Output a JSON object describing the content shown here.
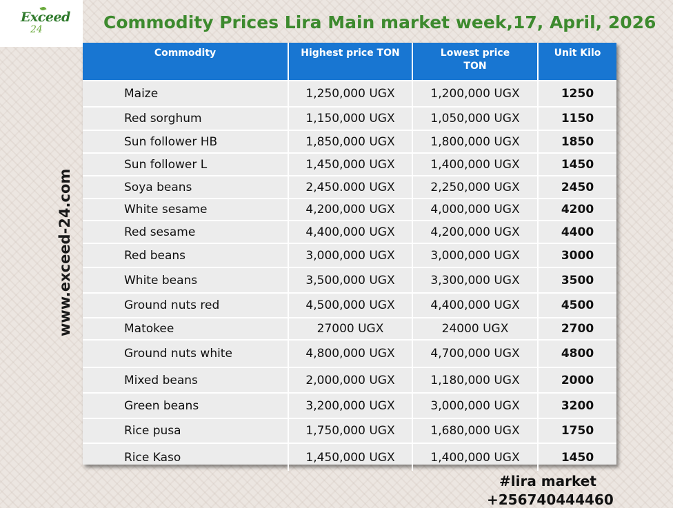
{
  "logo": {
    "brand": "Exceed",
    "sub": "24"
  },
  "title": "Commodity Prices Lira Main market week,17, April, 2026",
  "side_url": "www.exceed-24.com",
  "headers": [
    "Commodity",
    "Highest price TON",
    "Lowest price\nTON",
    "Unit Kilo"
  ],
  "rows": [
    {
      "name": "Maize",
      "high": "1,250,000 UGX",
      "low": "1,200,000 UGX",
      "unit": "1250"
    },
    {
      "name": "Red sorghum",
      "high": "1,150,000 UGX",
      "low": "1,050,000 UGX",
      "unit": "1150"
    },
    {
      "name": "Sun follower HB",
      "high": "1,850,000 UGX",
      "low": "1,800,000 UGX",
      "unit": "1850"
    },
    {
      "name": "Sun follower L",
      "high": "1,450,000 UGX",
      "low": "1,400,000 UGX",
      "unit": "1450"
    },
    {
      "name": "Soya beans",
      "high": "2,450.000 UGX",
      "low": "2,250,000 UGX",
      "unit": "2450"
    },
    {
      "name": "White sesame",
      "high": "4,200,000 UGX",
      "low": "4,000,000 UGX",
      "unit": "4200"
    },
    {
      "name": "Red sesame",
      "high": "4,400,000 UGX",
      "low": "4,200,000 UGX",
      "unit": "4400"
    },
    {
      "name": "Red beans",
      "high": "3,000,000 UGX",
      "low": "3,000,000 UGX",
      "unit": "3000"
    },
    {
      "name": "White beans",
      "high": "3,500,000 UGX",
      "low": "3,300,000 UGX",
      "unit": "3500"
    },
    {
      "name": "Ground nuts red",
      "high": "4,500,000 UGX",
      "low": "4,400,000 UGX",
      "unit": "4500"
    },
    {
      "name": "Matokee",
      "high": "27000 UGX",
      "low": "24000 UGX",
      "unit": "2700"
    },
    {
      "name": "Ground nuts white",
      "high": "4,800,000 UGX",
      "low": "4,700,000 UGX",
      "unit": "4800"
    },
    {
      "name": "Mixed beans",
      "high": "2,000,000 UGX",
      "low": "1,180,000 UGX",
      "unit": "2000"
    },
    {
      "name": "Green beans",
      "high": "3,200,000 UGX",
      "low": "3,000,000 UGX",
      "unit": "3200"
    },
    {
      "name": "Rice pusa",
      "high": "1,750,000 UGX",
      "low": "1,680,000 UGX",
      "unit": "1750"
    },
    {
      "name": "Rice Kaso",
      "high": "1,450,000 UGX",
      "low": "1,400,000 UGX",
      "unit": "1450"
    }
  ],
  "footer": {
    "hashtag": "#lira market",
    "phone": "+256740444460"
  }
}
